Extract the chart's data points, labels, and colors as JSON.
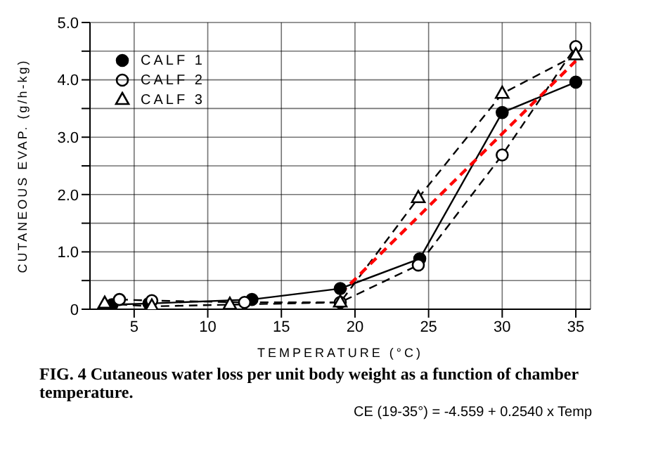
{
  "chart_data": {
    "type": "line",
    "title": "FIG. 4 Cutaneous water loss per unit body weight as a function of chamber temperature.",
    "xlabel": "TEMPERATURE (°C)",
    "ylabel": "CUTANEOUS EVAP. (g/h-kg)",
    "annotations": [
      "CE (19-35°) = -4.559 + 0.2540 x Temp"
    ],
    "xlim": [
      2,
      36
    ],
    "xticks": [
      5,
      10,
      15,
      20,
      25,
      30,
      35
    ],
    "ylim": [
      0,
      5
    ],
    "yticks": [
      {
        "value": 0,
        "label": "0"
      },
      {
        "value": 0.5,
        "label": null
      },
      {
        "value": 1,
        "label": "1.0"
      },
      {
        "value": 1.5,
        "label": null
      },
      {
        "value": 2,
        "label": "2.0"
      },
      {
        "value": 2.5,
        "label": null
      },
      {
        "value": 3,
        "label": "3.0"
      },
      {
        "value": 3.5,
        "label": null
      },
      {
        "value": 4,
        "label": "4.0"
      },
      {
        "value": 4.5,
        "label": null
      },
      {
        "value": 5,
        "label": "5.0"
      }
    ],
    "grid": true,
    "legend": "top left",
    "series": [
      {
        "name": "CALF 1",
        "color": "#000000",
        "marker": "circle",
        "line_style": "solid",
        "x": [
          3.5,
          6,
          13,
          19,
          24.4,
          30,
          35
        ],
        "values": [
          0.08,
          0.1,
          0.17,
          0.36,
          0.88,
          3.43,
          3.96
        ]
      },
      {
        "name": "CALF 2",
        "color": "#000000",
        "colors": [
          "#ffffff",
          "#ffffff",
          "#ffffff",
          "#ffffff",
          "#ffffff",
          "#ffffff",
          "#ffffff"
        ],
        "marker": "circle",
        "line_style": "dashed",
        "x": [
          4,
          6.2,
          12.5,
          19,
          24.3,
          30,
          35
        ],
        "values": [
          0.17,
          0.15,
          0.12,
          0.12,
          0.77,
          2.69,
          4.58
        ]
      },
      {
        "name": "CALF 3",
        "color": "#000000",
        "colors": [
          "#ffffff",
          "#ffffff",
          "#ffffff",
          "#ffffff",
          "#ffffff",
          "#ffffff",
          "#ffffff"
        ],
        "marker": "triangle",
        "line_style": "dashed",
        "x": [
          3,
          6.2,
          11.5,
          19,
          24.3,
          30,
          35
        ],
        "values": [
          0.1,
          0.05,
          0.08,
          0.12,
          1.94,
          3.76,
          4.43
        ]
      },
      {
        "color": "#ff0000",
        "marker": "none",
        "line_style": "dashed",
        "x": [
          19,
          35
        ],
        "values": [
          0.27,
          4.33
        ]
      }
    ]
  }
}
